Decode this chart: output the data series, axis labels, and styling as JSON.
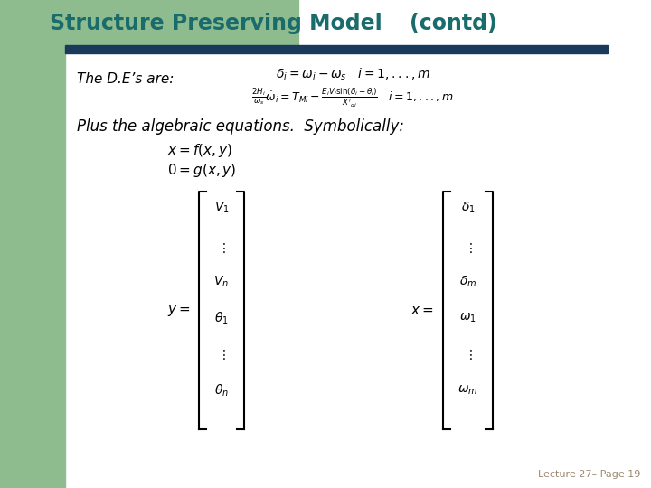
{
  "title_main": "Structure Preserving Model",
  "title_contd": "(contd)",
  "bg_left_color": "#8fbc8f",
  "header_bar_color": "#1a3a5c",
  "title_color": "#1a6b6b",
  "body_text_color": "#000000",
  "slide_bg": "#ffffff",
  "lecture_text": "Lecture 27– Page 19",
  "lecture_color": "#9b8870",
  "eq1": "$\\delta_i = \\omega_i - \\omega_s \\quad i = 1,...,m$",
  "eq2": "$\\frac{2H_i}{\\omega_s}\\dot{\\omega}_i = T_{Mi} - \\frac{E_i V_i \\sin(\\delta_i - \\theta_i)}{X'_{di}} \\quad i=1,...,m$",
  "eq3": "$x = f(x, y)$",
  "eq4": "$0 = g(x, y)$",
  "title_fontsize": 17,
  "body_fontsize": 11,
  "eq_fontsize": 9,
  "mat_fontsize": 10
}
